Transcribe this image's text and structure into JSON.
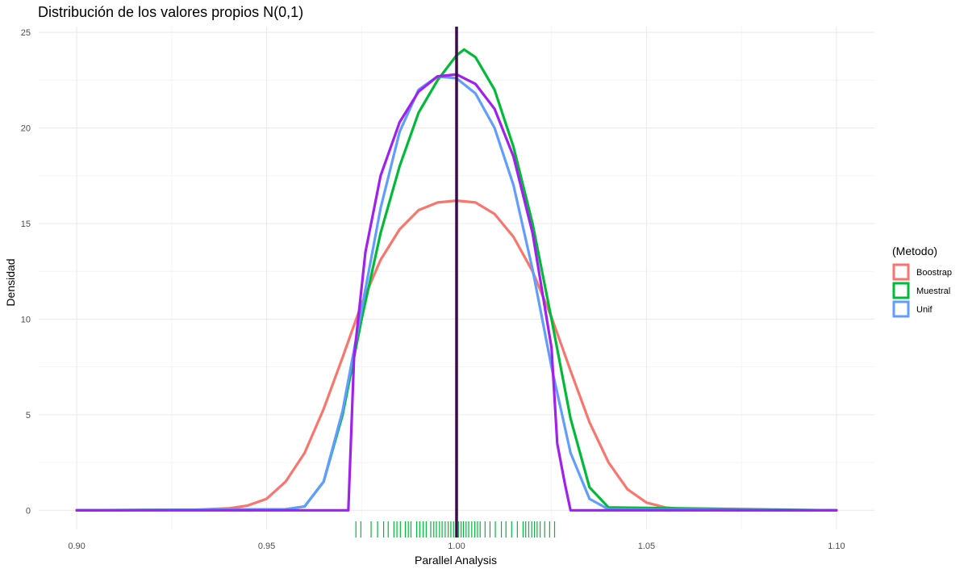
{
  "chart_data": {
    "type": "line",
    "title": "Distribución de los valores propios N(0,1)",
    "xlabel": "Parallel Analysis",
    "ylabel": "Densidad",
    "xlim": [
      0.89,
      1.11
    ],
    "ylim": [
      -1.0,
      25.3
    ],
    "x_ticks": [
      0.9,
      0.95,
      1.0,
      1.05,
      1.1
    ],
    "x_tick_labels": [
      "0.90",
      "0.95",
      "1.00",
      "1.05",
      "1.10"
    ],
    "y_ticks": [
      0,
      5,
      10,
      15,
      20,
      25
    ],
    "y_tick_labels": [
      "0",
      "5",
      "10",
      "15",
      "20",
      "25"
    ],
    "grid": true,
    "legend": {
      "title": "(Metodo)",
      "position": "right",
      "entries": [
        {
          "label": "Boostrap",
          "color": "#F8766D"
        },
        {
          "label": "Muestral",
          "color": "#00BA38"
        },
        {
          "label": "Unif",
          "color": "#619CFF"
        }
      ]
    },
    "series": [
      {
        "name": "Boostrap",
        "color": "#F8766D",
        "x": [
          0.9,
          0.93,
          0.94,
          0.945,
          0.95,
          0.955,
          0.96,
          0.965,
          0.97,
          0.975,
          0.98,
          0.985,
          0.99,
          0.995,
          1.0,
          1.005,
          1.01,
          1.015,
          1.02,
          1.025,
          1.03,
          1.035,
          1.04,
          1.045,
          1.05,
          1.055,
          1.06,
          1.07,
          1.1
        ],
        "y": [
          0,
          0.02,
          0.1,
          0.25,
          0.6,
          1.5,
          3.0,
          5.3,
          8.0,
          10.8,
          13.1,
          14.7,
          15.7,
          16.1,
          16.2,
          16.1,
          15.5,
          14.3,
          12.5,
          10.1,
          7.3,
          4.6,
          2.5,
          1.1,
          0.4,
          0.15,
          0.05,
          0.01,
          0
        ]
      },
      {
        "name": "Muestral",
        "color": "#00BA38",
        "x": [
          0.9,
          0.955,
          0.96,
          0.965,
          0.97,
          0.975,
          0.98,
          0.985,
          0.99,
          0.995,
          1.0,
          1.002,
          1.005,
          1.01,
          1.015,
          1.02,
          1.025,
          1.03,
          1.035,
          1.04,
          1.1
        ],
        "y": [
          0,
          0.05,
          0.2,
          1.5,
          5.0,
          10.0,
          14.5,
          18.0,
          20.8,
          22.5,
          23.8,
          24.1,
          23.7,
          22.0,
          19.0,
          15.0,
          10.0,
          4.8,
          1.2,
          0.15,
          0
        ]
      },
      {
        "name": "Unif",
        "color": "#619CFF",
        "x": [
          0.9,
          0.955,
          0.96,
          0.965,
          0.97,
          0.975,
          0.98,
          0.985,
          0.99,
          0.995,
          1.0,
          1.005,
          1.01,
          1.015,
          1.02,
          1.025,
          1.03,
          1.035,
          1.04,
          1.1
        ],
        "y": [
          0,
          0.05,
          0.2,
          1.5,
          5.2,
          10.5,
          15.8,
          19.8,
          22.0,
          22.7,
          22.6,
          21.8,
          20.0,
          17.0,
          12.6,
          7.5,
          3.0,
          0.6,
          0.05,
          0
        ]
      },
      {
        "name": "",
        "color": "#A020F0",
        "x": [
          0.9,
          0.9715,
          0.973,
          0.976,
          0.98,
          0.985,
          0.99,
          0.995,
          1.0,
          1.005,
          1.01,
          1.015,
          1.02,
          1.025,
          1.0265,
          1.0285,
          1.03,
          1.1
        ],
        "y": [
          0,
          0,
          8.0,
          13.5,
          17.5,
          20.3,
          21.9,
          22.7,
          22.8,
          22.3,
          21.0,
          18.5,
          14.5,
          8.5,
          3.5,
          1.4,
          0,
          0
        ]
      }
    ],
    "vline": {
      "x": 1.0,
      "color": "#3D0B4A"
    },
    "rug": {
      "color": "#00BA38",
      "x": [
        0.9735,
        0.9748,
        0.9775,
        0.9792,
        0.9808,
        0.982,
        0.9835,
        0.9843,
        0.9852,
        0.9865,
        0.9873,
        0.988,
        0.9895,
        0.9903,
        0.9912,
        0.992,
        0.9932,
        0.994,
        0.9947,
        0.9955,
        0.9962,
        0.997,
        0.9978,
        0.9985,
        0.9992,
        1.0005,
        1.0012,
        1.0018,
        1.0025,
        1.0032,
        1.004,
        1.0048,
        1.0055,
        1.0062,
        1.0075,
        1.0088,
        1.0102,
        1.0118,
        1.013,
        1.0145,
        1.016,
        1.0175,
        1.0182,
        1.019,
        1.0198,
        1.0205,
        1.0212,
        1.022,
        1.0232,
        1.0245,
        1.0258
      ]
    }
  }
}
